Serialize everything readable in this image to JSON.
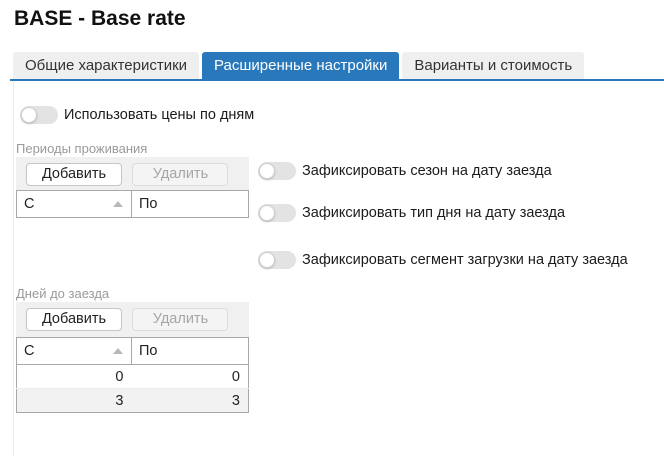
{
  "page": {
    "title": "BASE - Base rate"
  },
  "tabs": [
    {
      "label": "Общие характеристики",
      "active": false
    },
    {
      "label": "Расширенные настройки",
      "active": true
    },
    {
      "label": "Варианты и стоимость",
      "active": false
    }
  ],
  "toggles": {
    "use_daily_prices": {
      "label": "Использовать цены по дням",
      "state": "off"
    },
    "fix_season": {
      "label": "Зафиксировать сезон на дату заезда",
      "state": "off"
    },
    "fix_day_type": {
      "label": "Зафиксировать тип дня на дату заезда",
      "state": "off"
    },
    "fix_load_segment": {
      "label": "Зафиксировать сегмент загрузки на дату заезда",
      "state": "off"
    }
  },
  "periods_section": {
    "label": "Периоды проживания",
    "add_button": "Добавить",
    "delete_button": "Удалить",
    "delete_disabled": true,
    "columns": [
      "С",
      "По"
    ],
    "sort": {
      "column": "С",
      "direction": "asc"
    },
    "rows": []
  },
  "days_section": {
    "label": "Дней до заезда",
    "add_button": "Добавить",
    "delete_button": "Удалить",
    "delete_disabled": true,
    "columns": [
      "С",
      "По"
    ],
    "sort": {
      "column": "С",
      "direction": "asc"
    },
    "rows": [
      [
        "0",
        "0"
      ],
      [
        "3",
        "3"
      ]
    ]
  },
  "colors": {
    "accent_blue": "#2878bb",
    "tab_inactive_bg": "#efefef",
    "toolbar_bg": "#f0f0f0",
    "alt_row_bg": "#f2f2f2"
  }
}
